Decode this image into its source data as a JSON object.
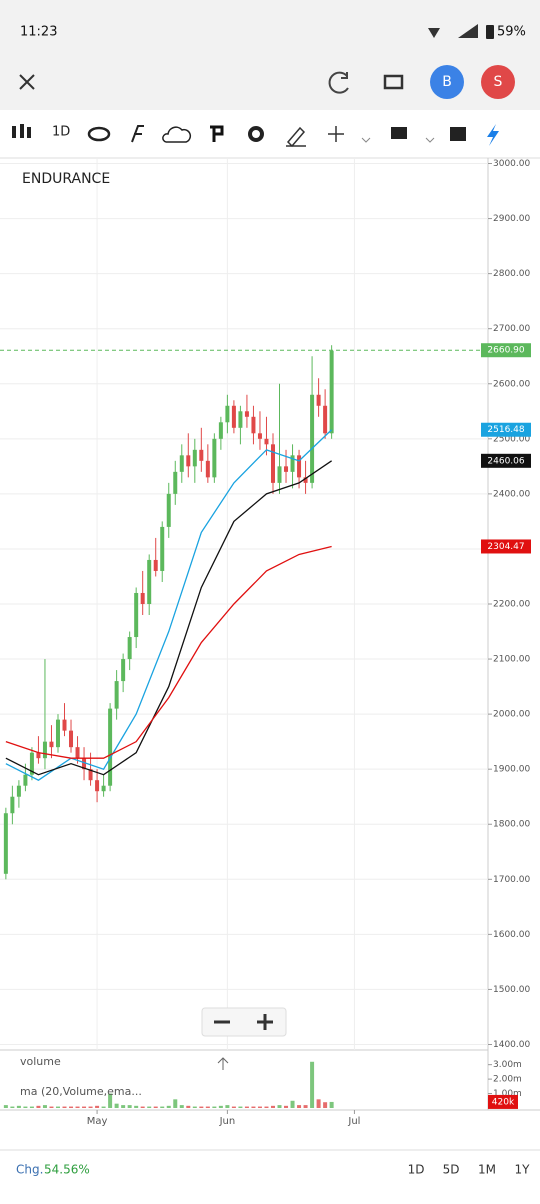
{
  "status_bar": {
    "time": "11:23",
    "battery": "59%"
  },
  "app_bar": {
    "avatars": [
      "B",
      "S"
    ]
  },
  "toolbar": {
    "interval": "1D"
  },
  "chart_data": {
    "type": "candlestick",
    "title": "ENDURANCE",
    "open": [
      1710,
      1820,
      1850,
      1870,
      1890,
      1930,
      1920,
      1950,
      1940,
      1990,
      1970,
      1940,
      1920,
      1900,
      1880,
      1860,
      1870,
      2010,
      2060,
      2100,
      2140,
      2220,
      2200,
      2280,
      2260,
      2340,
      2400,
      2440,
      2470,
      2450,
      2480,
      2460,
      2430,
      2500,
      2530,
      2560,
      2520,
      2550,
      2540,
      2510,
      2500,
      2490,
      2420,
      2450,
      2440,
      2470,
      2430,
      2420,
      2580,
      2560,
      2510
    ],
    "high": [
      1830,
      1870,
      1880,
      1910,
      1940,
      1960,
      2100,
      1980,
      2000,
      2020,
      1990,
      1960,
      1940,
      1930,
      1900,
      1890,
      2020,
      2080,
      2110,
      2150,
      2230,
      2260,
      2290,
      2320,
      2350,
      2420,
      2460,
      2490,
      2510,
      2500,
      2520,
      2490,
      2510,
      2540,
      2580,
      2570,
      2560,
      2580,
      2560,
      2550,
      2540,
      2510,
      2600,
      2480,
      2490,
      2480,
      2460,
      2650,
      2610,
      2590,
      2670
    ],
    "low": [
      1700,
      1800,
      1830,
      1860,
      1880,
      1910,
      1900,
      1920,
      1930,
      1960,
      1930,
      1910,
      1880,
      1870,
      1840,
      1850,
      1860,
      1990,
      2040,
      2080,
      2120,
      2180,
      2180,
      2250,
      2240,
      2320,
      2380,
      2420,
      2430,
      2420,
      2440,
      2420,
      2420,
      2480,
      2510,
      2510,
      2490,
      2520,
      2490,
      2480,
      2470,
      2400,
      2400,
      2420,
      2410,
      2410,
      2400,
      2410,
      2540,
      2500,
      2500
    ],
    "close": [
      1820,
      1850,
      1870,
      1890,
      1930,
      1920,
      1950,
      1940,
      1990,
      1970,
      1940,
      1920,
      1900,
      1880,
      1860,
      1870,
      2010,
      2060,
      2100,
      2140,
      2220,
      2200,
      2280,
      2260,
      2340,
      2400,
      2440,
      2470,
      2450,
      2480,
      2460,
      2430,
      2500,
      2530,
      2560,
      2520,
      2550,
      2540,
      2510,
      2500,
      2490,
      2420,
      2450,
      2440,
      2470,
      2430,
      2420,
      2580,
      2560,
      2510,
      2660
    ],
    "up_color": "#5cb85c",
    "down_color": "#e04848",
    "ylim": [
      1390,
      3010
    ],
    "yticks": [
      {
        "value": 3000,
        "label": "3000.00"
      },
      {
        "value": 2900,
        "label": "2900.00"
      },
      {
        "value": 2800,
        "label": "2800.00"
      },
      {
        "value": 2700,
        "label": "2700.00"
      },
      {
        "value": 2600,
        "label": "2600.00"
      },
      {
        "value": 2500,
        "label": "2500.00"
      },
      {
        "value": 2400,
        "label": "2400.00"
      },
      {
        "value": 2300,
        "label": "2300.00"
      },
      {
        "value": 2200,
        "label": "2200.00"
      },
      {
        "value": 2100,
        "label": "2100.00"
      },
      {
        "value": 2000,
        "label": "2000.00"
      },
      {
        "value": 1900,
        "label": "1900.00"
      },
      {
        "value": 1800,
        "label": "1800.00"
      },
      {
        "value": 1700,
        "label": "1700.00"
      },
      {
        "value": 1600,
        "label": "1600.00"
      },
      {
        "value": 1500,
        "label": "1500.00"
      },
      {
        "value": 1400,
        "label": "1400.00"
      }
    ],
    "xlim": [
      -0.9,
      74
    ],
    "xticks": [
      {
        "value": 14,
        "label": "May"
      },
      {
        "value": 34,
        "label": "Jun"
      },
      {
        "value": 53.5,
        "label": "Jul"
      }
    ],
    "lines": [
      {
        "color": "#1aa3e0",
        "x": [
          0,
          5,
          10,
          15,
          20,
          25,
          30,
          35,
          40,
          45,
          50
        ],
        "values": [
          1910,
          1880,
          1920,
          1900,
          2000,
          2150,
          2330,
          2420,
          2480,
          2460,
          2516.48
        ]
      },
      {
        "color": "#111111",
        "x": [
          0,
          5,
          10,
          15,
          20,
          25,
          30,
          35,
          40,
          45,
          50
        ],
        "values": [
          1920,
          1890,
          1910,
          1890,
          1930,
          2050,
          2230,
          2350,
          2400,
          2420,
          2460.06
        ]
      },
      {
        "color": "#e01010",
        "x": [
          0,
          5,
          10,
          15,
          20,
          25,
          30,
          35,
          40,
          45,
          50
        ],
        "values": [
          1950,
          1930,
          1920,
          1920,
          1950,
          2030,
          2130,
          2200,
          2260,
          2290,
          2304.47
        ]
      }
    ],
    "price_labels": [
      {
        "value": 2660.9,
        "label": "2660.90",
        "color": "#5cb85c"
      },
      {
        "value": 2516.48,
        "label": "2516.48",
        "color": "#1aa3e0"
      },
      {
        "value": 2460.06,
        "label": "2460.06",
        "color": "#111111"
      },
      {
        "value": 2304.47,
        "label": "2304.47",
        "color": "#e01010"
      }
    ],
    "grid": true,
    "volume": {
      "title": "volume",
      "ma_label": "ma (20,Volume,ema...",
      "values": [
        0.2,
        0.1,
        0.15,
        0.1,
        0.1,
        0.15,
        0.2,
        0.1,
        0.1,
        0.1,
        0.1,
        0.1,
        0.1,
        0.1,
        0.15,
        0.1,
        1.0,
        0.3,
        0.2,
        0.2,
        0.15,
        0.1,
        0.1,
        0.1,
        0.1,
        0.15,
        0.6,
        0.2,
        0.15,
        0.1,
        0.1,
        0.1,
        0.1,
        0.15,
        0.2,
        0.1,
        0.1,
        0.1,
        0.1,
        0.1,
        0.1,
        0.15,
        0.2,
        0.15,
        0.5,
        0.2,
        0.2,
        3.2,
        0.6,
        0.4,
        0.42
      ],
      "ylim": [
        0,
        3.6
      ],
      "yticks": [
        {
          "value": 3,
          "label": "3.00m"
        },
        {
          "value": 2,
          "label": "2.00m"
        },
        {
          "value": 1,
          "label": "1.00m"
        }
      ],
      "last_label": {
        "value": 0.42,
        "label": "420k",
        "color": "#e01010"
      }
    }
  },
  "footer": {
    "change_label": "Chg.",
    "change_value": "54.56%",
    "ranges": [
      "1D",
      "5D",
      "1M",
      "1Y"
    ]
  }
}
